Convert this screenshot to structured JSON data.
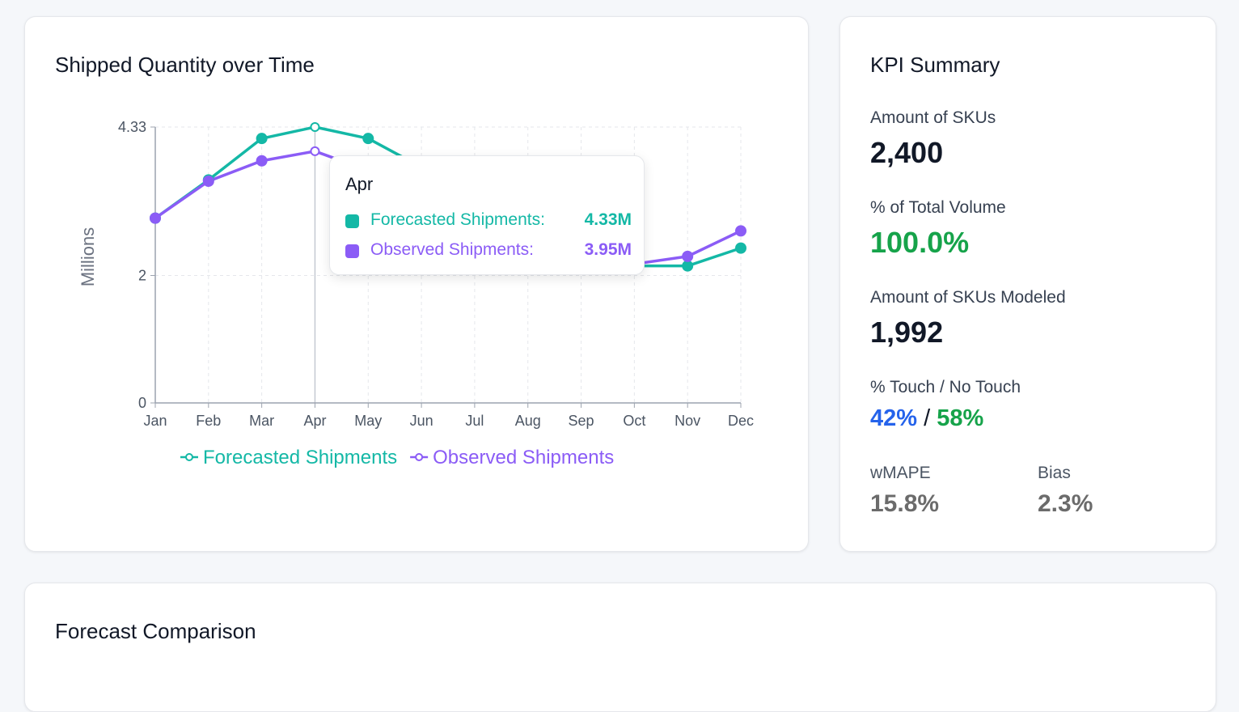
{
  "colors": {
    "forecast": "#14b8a6",
    "observed": "#8b5cf6",
    "green": "#16a34a",
    "blue": "#2563eb"
  },
  "chart_card": {
    "title": "Shipped Quantity over Time"
  },
  "chart_data": {
    "type": "line",
    "title": "Shipped Quantity over Time",
    "ylabel": "Millions",
    "xlabel": "",
    "categories": [
      "Jan",
      "Feb",
      "Mar",
      "Apr",
      "May",
      "Jun",
      "Jul",
      "Aug",
      "Sep",
      "Oct",
      "Nov",
      "Dec"
    ],
    "yticks": [
      {
        "value": 0,
        "label": "0"
      },
      {
        "value": 2,
        "label": "2"
      },
      {
        "value": 4.33,
        "label": "4.33"
      }
    ],
    "ylim": [
      0,
      4.33
    ],
    "grid": true,
    "legend_position": "bottom",
    "series": [
      {
        "name": "Forecasted Shipments",
        "values": [
          2.9,
          3.5,
          4.15,
          4.33,
          4.15,
          3.7,
          2.95,
          2.55,
          2.3,
          2.15,
          2.15,
          2.43
        ]
      },
      {
        "name": "Observed Shipments",
        "values": [
          2.9,
          3.48,
          3.8,
          3.95,
          3.65,
          3.25,
          2.8,
          2.5,
          2.25,
          2.18,
          2.3,
          2.7
        ]
      }
    ]
  },
  "tooltip": {
    "title": "Apr",
    "rows": [
      {
        "label": "Forecasted Shipments:",
        "value": "4.33M"
      },
      {
        "label": "Observed Shipments:",
        "value": "3.95M"
      }
    ]
  },
  "kpi": {
    "title": "KPI Summary",
    "skus_label": "Amount of SKUs",
    "skus_value": "2,400",
    "volume_label": "% of Total Volume",
    "volume_value": "100.0%",
    "modeled_label": "Amount of SKUs Modeled",
    "modeled_value": "1,992",
    "touch_label": "% Touch / No Touch",
    "touch_value": "42%",
    "touch_separator": "/",
    "no_touch_value": "58%",
    "wmape_label": "wMAPE",
    "wmape_value": "15.8%",
    "bias_label": "Bias",
    "bias_value": "2.3%"
  },
  "comparison_card": {
    "title": "Forecast Comparison"
  }
}
